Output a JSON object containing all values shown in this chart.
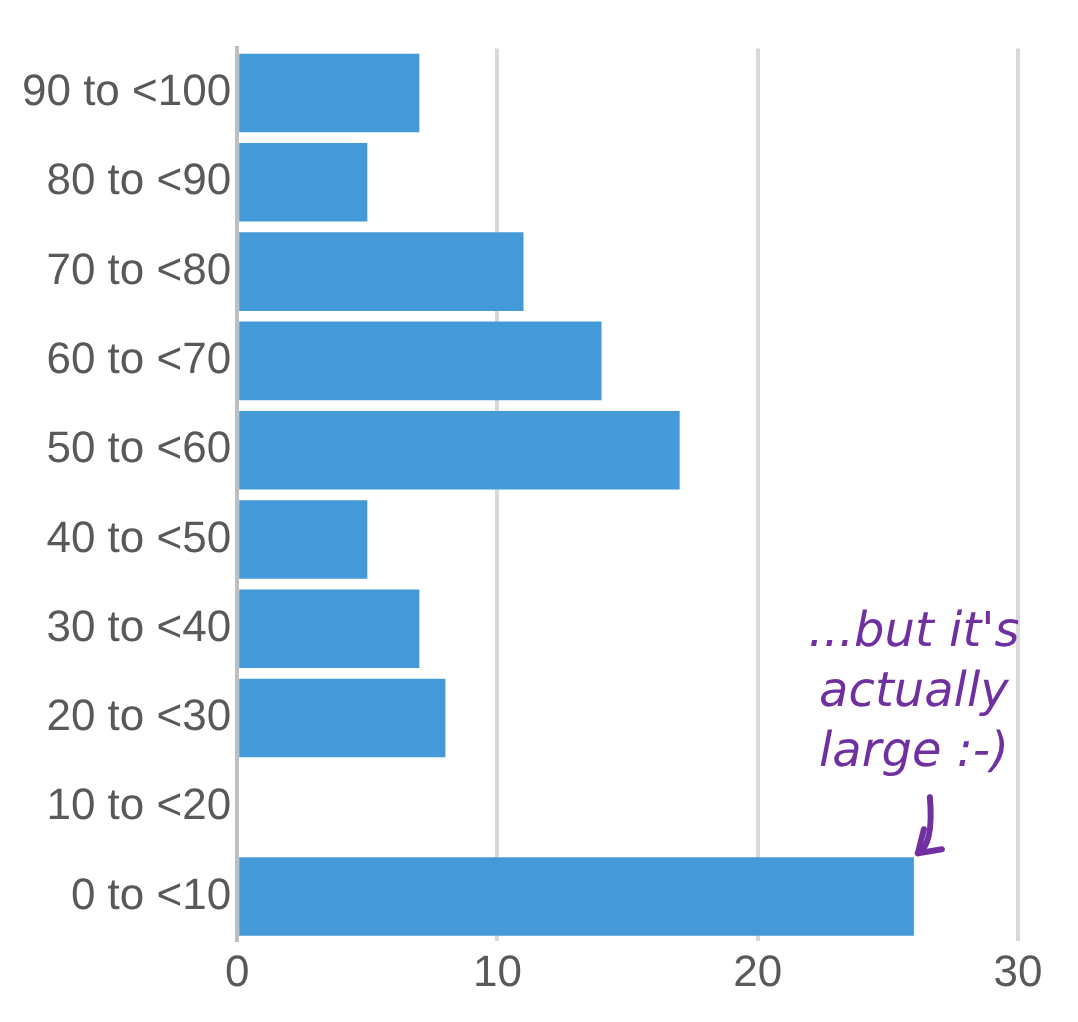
{
  "chart_data": {
    "type": "bar",
    "orientation": "horizontal",
    "categories": [
      "90 to <100",
      "80 to <90",
      "70 to <80",
      "60 to <70",
      "50 to <60",
      "40 to <50",
      "30 to <40",
      "20 to <30",
      "10 to <20",
      "0 to <10"
    ],
    "values": [
      7,
      5,
      11,
      14,
      17,
      5,
      7,
      8,
      0,
      26
    ],
    "color": "#449ad9",
    "xlim": [
      0,
      30
    ],
    "xticks": [
      0,
      10,
      20,
      30
    ],
    "grid": "x",
    "legend": false,
    "annotations": [
      {
        "text": "...but it's\nactually\nlarge :-)",
        "x": 26,
        "y": "0 to <10"
      }
    ]
  }
}
